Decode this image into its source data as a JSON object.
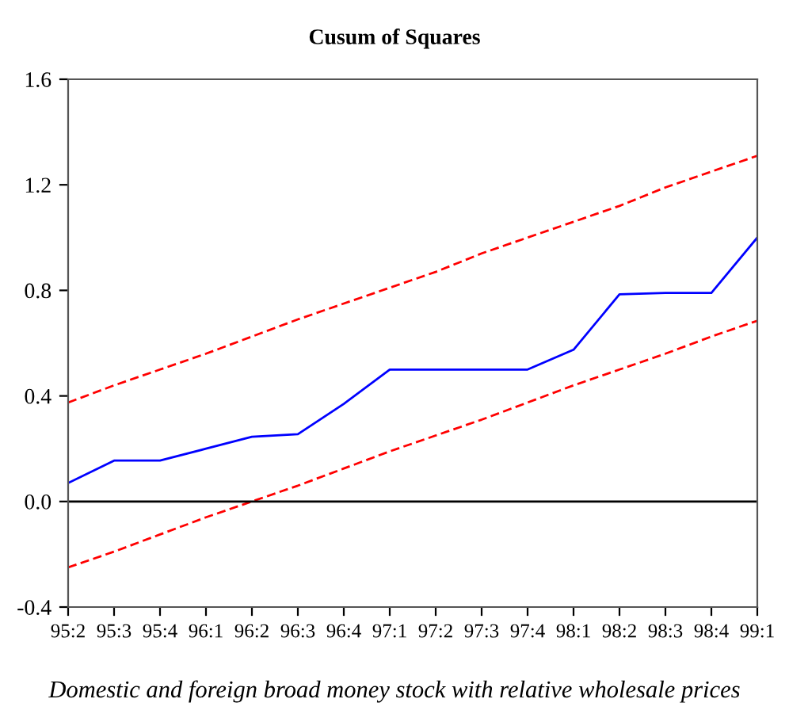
{
  "chart_data": {
    "type": "line",
    "title": "Cusum of Squares",
    "categories": [
      "95:2",
      "95:3",
      "95:4",
      "96:1",
      "96:2",
      "96:3",
      "96:4",
      "97:1",
      "97:2",
      "97:3",
      "97:4",
      "98:1",
      "98:2",
      "98:3",
      "98:4",
      "99:1"
    ],
    "series": [
      {
        "color": "#0000ff",
        "values": [
          0.07,
          0.155,
          0.155,
          0.2,
          0.245,
          0.255,
          0.37,
          0.5,
          0.5,
          0.5,
          0.5,
          0.575,
          0.785,
          0.79,
          0.79,
          1.0
        ]
      },
      {
        "color": "#ff0000",
        "line_style": "dashed",
        "values": [
          0.375,
          0.44,
          0.5,
          0.56,
          0.625,
          0.69,
          0.75,
          0.81,
          0.87,
          0.94,
          1.0,
          1.06,
          1.12,
          1.19,
          1.25,
          1.31
        ]
      },
      {
        "color": "#ff0000",
        "line_style": "dashed",
        "values": [
          -0.25,
          -0.19,
          -0.125,
          -0.06,
          0.0,
          0.06,
          0.125,
          0.19,
          0.25,
          0.31,
          0.375,
          0.44,
          0.5,
          0.56,
          0.625,
          0.685
        ]
      }
    ],
    "ylim": [
      -0.4,
      1.6
    ],
    "yticks": [
      {
        "value": -0.4,
        "label": "-0.4"
      },
      {
        "value": 0.0,
        "label": "0.0"
      },
      0.4,
      0.8,
      1.2,
      1.6
    ],
    "ref_lines": [
      {
        "axis": "y",
        "value": 0,
        "color": "#000000"
      }
    ],
    "grid": false,
    "legend": false,
    "annotations": [
      "Domestic and foreign broad money stock with relative wholesale prices"
    ]
  }
}
